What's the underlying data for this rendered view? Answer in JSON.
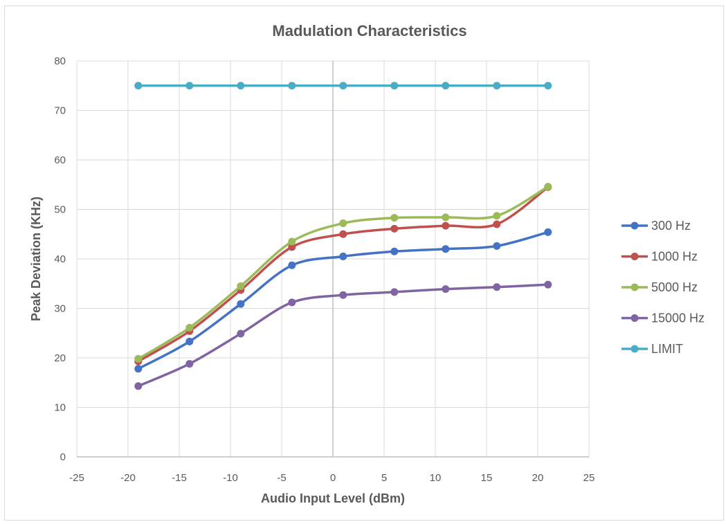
{
  "chart_data": {
    "type": "line",
    "title": "Madulation Characteristics",
    "xlabel": "Audio Input Level (dBm)",
    "ylabel": "Peak Deviation (KHz)",
    "xlim": [
      -25,
      25
    ],
    "ylim": [
      0,
      80
    ],
    "x_ticks": [
      -25,
      -20,
      -15,
      -10,
      -5,
      0,
      5,
      10,
      15,
      20,
      25
    ],
    "y_ticks": [
      0,
      10,
      20,
      30,
      40,
      50,
      60,
      70,
      80
    ],
    "grid": true,
    "smooth": true,
    "legend_position": "right",
    "x": [
      -19,
      -14,
      -9,
      -4,
      1,
      6,
      11,
      16,
      21
    ],
    "series": [
      {
        "name": "300 Hz",
        "color": "#4472c4",
        "values": [
          17.8,
          23.3,
          30.9,
          38.7,
          40.5,
          41.5,
          42.0,
          42.6,
          45.4
        ]
      },
      {
        "name": "1000 Hz",
        "color": "#c0504d",
        "values": [
          19.3,
          25.4,
          33.7,
          42.4,
          45.0,
          46.1,
          46.7,
          47.0,
          54.5
        ]
      },
      {
        "name": "5000 Hz",
        "color": "#9bbb59",
        "values": [
          19.8,
          26.1,
          34.5,
          43.5,
          47.2,
          48.3,
          48.4,
          48.7,
          54.6
        ]
      },
      {
        "name": "15000 Hz",
        "color": "#8064a2",
        "values": [
          14.3,
          18.8,
          24.9,
          31.2,
          32.7,
          33.3,
          33.9,
          34.3,
          34.8
        ]
      },
      {
        "name": "LIMIT",
        "color": "#4bacc6",
        "values": [
          75,
          75,
          75,
          75,
          75,
          75,
          75,
          75,
          75
        ]
      }
    ]
  }
}
